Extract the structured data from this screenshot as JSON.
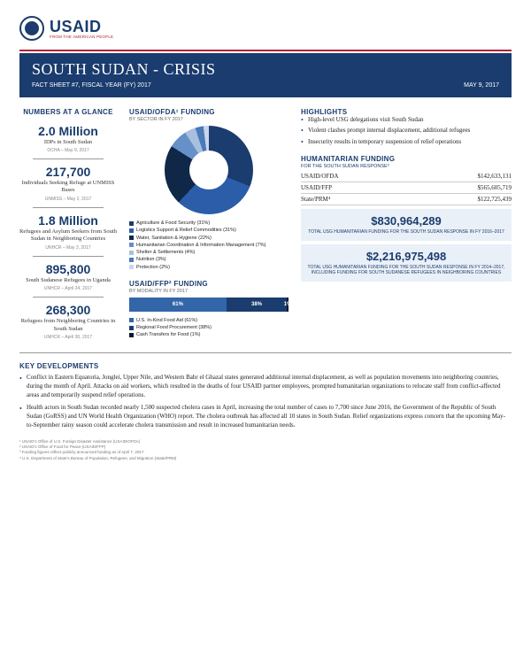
{
  "logo": {
    "main": "USAID",
    "sub": "FROM THE AMERICAN PEOPLE"
  },
  "banner": {
    "title": "SOUTH SUDAN - CRISIS",
    "factsheet": "FACT SHEET #7, FISCAL YEAR (FY) 2017",
    "date": "MAY 9, 2017"
  },
  "glance": {
    "header": "NUMBERS AT A GLANCE",
    "stats": [
      {
        "value": "2.0 Million",
        "label": "IDPs in South Sudan",
        "source": "OCHA – May 9, 2017"
      },
      {
        "value": "217,700",
        "label": "Individuals Seeking Refuge at UNMISS Bases",
        "source": "UNMISS – May 2, 2017"
      },
      {
        "value": "1.8 Million",
        "label": "Refugees and Asylum Seekers from South Sudan in Neighboring Countries",
        "source": "UNHCR – May 3, 2017"
      },
      {
        "value": "895,800",
        "label": "South Sudanese Refugees in Uganda",
        "source": "UNHCR – April 24, 2017"
      },
      {
        "value": "268,300",
        "label": "Refugees from Neighboring Countries in South Sudan",
        "source": "UNHCR – April 30, 2017"
      }
    ]
  },
  "ofda": {
    "header": "USAID/OFDA¹ FUNDING",
    "sub": "BY SECTOR IN FY 2017",
    "chart": {
      "type": "donut",
      "slices": [
        {
          "label": "Agriculture & Food Security (31%)",
          "pct": 31,
          "color": "#1a3c6e"
        },
        {
          "label": "Logistics Support & Relief Commodities (31%)",
          "pct": 31,
          "color": "#2b5da8"
        },
        {
          "label": "Water, Sanitation & Hygiene (22%)",
          "pct": 22,
          "color": "#0f2847"
        },
        {
          "label": "Humanitarian Coordination & Information Management (7%)",
          "pct": 7,
          "color": "#6590c8"
        },
        {
          "label": "Shelter & Settlements (4%)",
          "pct": 4,
          "color": "#a8c0dd"
        },
        {
          "label": "Nutrition (3%)",
          "pct": 3,
          "color": "#4a7ab8"
        },
        {
          "label": "Protection (2%)",
          "pct": 2,
          "color": "#c8d6e8"
        }
      ]
    }
  },
  "ffp": {
    "header": "USAID/FFP² FUNDING",
    "sub": "BY MODALITY IN FY 2017",
    "chart": {
      "type": "stacked-bar",
      "segments": [
        {
          "label": "U.S. In-Kind Food Aid (61%)",
          "short": "61%",
          "pct": 61,
          "color": "#3366a8"
        },
        {
          "label": "Regional Food Procurement (38%)",
          "short": "38%",
          "pct": 38,
          "color": "#1a3c6e"
        },
        {
          "label": "Cash Transfers for Food (1%)",
          "short": "1%",
          "pct": 1,
          "color": "#0a1a30"
        }
      ]
    }
  },
  "highlights": {
    "header": "HIGHLIGHTS",
    "items": [
      "High-level USG delegations visit South Sudan",
      "Violent clashes prompt internal displacement, additional refugees",
      "Insecurity results in temporary suspension of relief operations"
    ]
  },
  "humfund": {
    "header": "HUMANITARIAN FUNDING",
    "sub": "FOR THE SOUTH SUDAN RESPONSE³",
    "rows": [
      {
        "src": "USAID/OFDA",
        "amt": "$142,633,131"
      },
      {
        "src": "USAID/FFP",
        "amt": "$565,605,719"
      },
      {
        "src": "State/PRM⁴",
        "amt": "$122,725,439"
      }
    ],
    "totals": [
      {
        "val": "$830,964,289",
        "lbl": "TOTAL USG HUMANITARIAN FUNDING FOR THE SOUTH SUDAN RESPONSE IN FY 2016–2017"
      },
      {
        "val": "$2,216,975,498",
        "lbl": "TOTAL USG HUMANITARIAN FUNDING FOR THE SOUTH SUDAN RESPONSE IN FY 2014–2017, INCLUDING FUNDING FOR SOUTH SUDANESE REFUGEES IN NEIGHBORING COUNTRIES"
      }
    ]
  },
  "keydev": {
    "header": "KEY DEVELOPMENTS",
    "items": [
      "Conflict in Eastern Equatoria, Jonglei, Upper Nile, and Western Bahr el Ghazal states generated additional internal displacement, as well as population movements into neighboring countries, during the month of April. Attacks on aid workers, which resulted in the deaths of four USAID partner employees, prompted humanitarian organizations to relocate staff from conflict-affected areas and temporarily suspend relief operations.",
      "Health actors in South Sudan recorded nearly 1,500 suspected cholera cases in April, increasing the total number of cases to 7,700 since June 2016, the Government of the Republic of South Sudan (GoRSS) and UN World Health Organization (WHO) report. The cholera outbreak has affected all 10 states in South Sudan. Relief organizations express concern that the upcoming May-to-September rainy season could accelerate cholera transmission and result in increased humanitarian needs."
    ]
  },
  "footnotes": [
    "¹ USAID's Office of U.S. Foreign Disaster Assistance (USAID/OFDA)",
    "² USAID's Office of Food for Peace (USAID/FFP)",
    "³ Funding figures reflect publicly announced funding as of April 7, 2017.",
    "⁴ U.S. Department of State's Bureau of Population, Refugees, and Migration (State/PRM)"
  ],
  "colors": {
    "navy": "#1a3c6e",
    "red": "#b22234",
    "ltblue": "#eaf0f7"
  }
}
